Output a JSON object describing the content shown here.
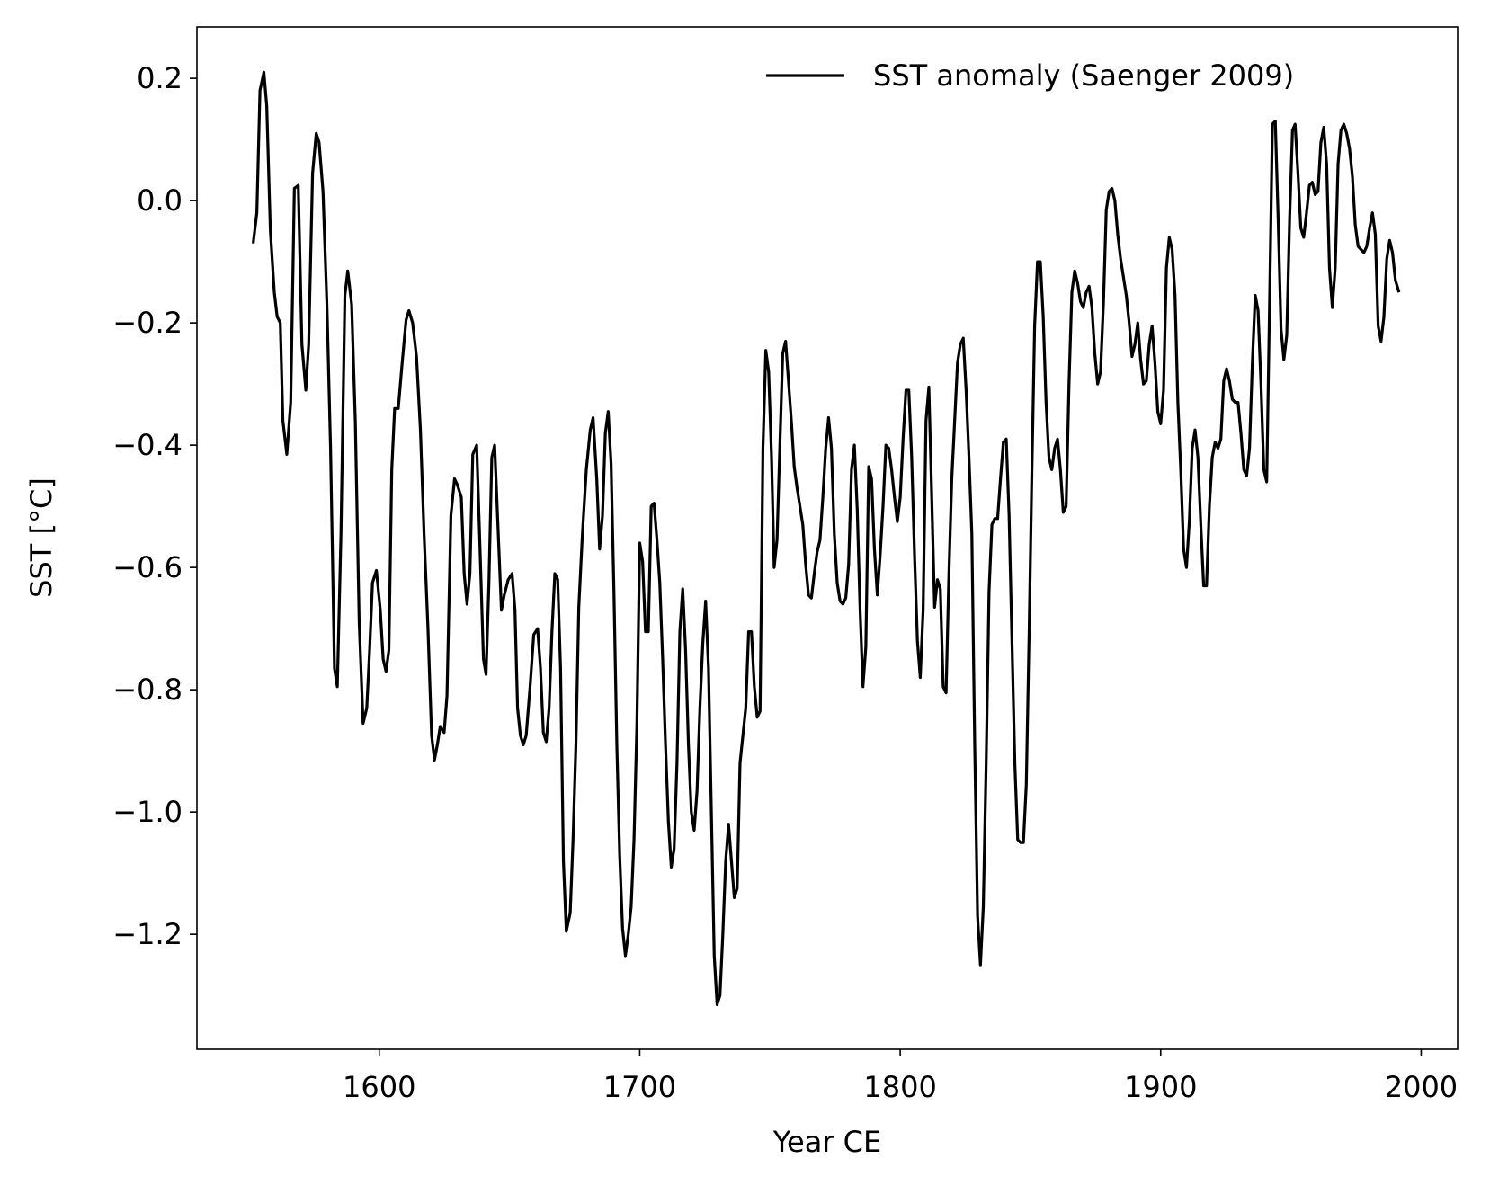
{
  "chart_data": {
    "type": "line",
    "xlabel": "Year CE",
    "ylabel": "SST [°C]",
    "xlim": [
      1530,
      2014
    ],
    "ylim": [
      -1.388,
      0.284
    ],
    "xticks": [
      1600,
      1700,
      1800,
      1900,
      2000
    ],
    "yticks": [
      {
        "value": -1.2,
        "label": "−1.2"
      },
      {
        "value": -1.0,
        "label": "−1.0"
      },
      {
        "value": -0.8,
        "label": "−0.8"
      },
      {
        "value": -0.6,
        "label": "−0.6"
      },
      {
        "value": -0.4,
        "label": "−0.4"
      },
      {
        "value": -0.2,
        "label": "−0.2"
      },
      {
        "value": 0.0,
        "label": "0.0"
      },
      0.2
    ],
    "grid": false,
    "legend": "upper right",
    "x": [
      1551.6,
      1553,
      1554.2,
      1555.7,
      1556.8,
      1558.2,
      1559.7,
      1560.8,
      1562,
      1563,
      1564.5,
      1566,
      1567.4,
      1568.9,
      1570.3,
      1571.8,
      1572.9,
      1574.4,
      1575.8,
      1576.9,
      1578.4,
      1579.9,
      1581.3,
      1582.8,
      1583.9,
      1585.3,
      1586.8,
      1587.9,
      1589.4,
      1590.8,
      1592.3,
      1593.8,
      1595.2,
      1596.3,
      1597.4,
      1598.9,
      1600.4,
      1601.5,
      1602.6,
      1603.7,
      1604.8,
      1605.9,
      1607.3,
      1608.8,
      1610.3,
      1611.4,
      1612.8,
      1614.3,
      1615.8,
      1617.2,
      1618.7,
      1620.1,
      1621.2,
      1622.3,
      1623.4,
      1624.9,
      1626,
      1627.5,
      1628.9,
      1630,
      1631.5,
      1632.6,
      1633.7,
      1634.8,
      1635.9,
      1637.4,
      1638.5,
      1640,
      1641,
      1642.1,
      1643.2,
      1644.3,
      1645.4,
      1646.9,
      1648,
      1649.5,
      1651,
      1652.1,
      1653.1,
      1654.2,
      1655.3,
      1656.4,
      1657.9,
      1659.3,
      1660.8,
      1661.9,
      1663,
      1664.1,
      1665.2,
      1666.3,
      1667.4,
      1668.5,
      1669.6,
      1670.7,
      1671.8,
      1673.3,
      1674.4,
      1675.5,
      1676.6,
      1678,
      1679.5,
      1681,
      1682.1,
      1683.5,
      1684.6,
      1685.7,
      1686.8,
      1687.9,
      1689,
      1690.1,
      1691.2,
      1692.3,
      1693.4,
      1694.5,
      1695.6,
      1696.7,
      1697.8,
      1698.9,
      1700,
      1701.1,
      1702.2,
      1703.3,
      1704.4,
      1705.5,
      1706.6,
      1707.7,
      1708.8,
      1709.9,
      1711,
      1712.1,
      1713.2,
      1714.3,
      1715.4,
      1716.5,
      1717.6,
      1718.7,
      1719.8,
      1720.9,
      1722,
      1723.1,
      1724.2,
      1725.3,
      1726.4,
      1727.5,
      1728.6,
      1729.7,
      1730.8,
      1731.9,
      1733,
      1734.1,
      1735.2,
      1736.3,
      1737.4,
      1738.5,
      1739.6,
      1740.7,
      1741.8,
      1742.9,
      1744,
      1745.1,
      1746.2,
      1747.3,
      1748.4,
      1749.5,
      1750.6,
      1751.6,
      1752.7,
      1753.8,
      1754.9,
      1756,
      1757.1,
      1758.2,
      1759.3,
      1760.4,
      1761.5,
      1762.6,
      1763.7,
      1764.8,
      1765.9,
      1767,
      1768.1,
      1769.2,
      1770.3,
      1771.4,
      1772.5,
      1773.6,
      1774.7,
      1775.8,
      1776.9,
      1778,
      1779.1,
      1780.2,
      1781.3,
      1782.4,
      1783.5,
      1784.6,
      1785.7,
      1786.8,
      1787.9,
      1789,
      1790.1,
      1791.2,
      1792.3,
      1793.4,
      1794.5,
      1795.6,
      1796.7,
      1797.8,
      1798.9,
      1800,
      1801.1,
      1802.2,
      1803.3,
      1804.4,
      1805.5,
      1806.6,
      1807.7,
      1808.8,
      1809.9,
      1811,
      1812.1,
      1813.2,
      1814.3,
      1815.4,
      1816.5,
      1817.6,
      1818.7,
      1819.8,
      1820.9,
      1822,
      1823.1,
      1824.2,
      1825.3,
      1826.4,
      1827.5,
      1828.6,
      1829.7,
      1830.8,
      1831.9,
      1833,
      1834.1,
      1835.2,
      1836.3,
      1837.4,
      1838.5,
      1839.6,
      1840.7,
      1841.8,
      1842.9,
      1844,
      1845.1,
      1846.2,
      1847.3,
      1848.4,
      1849.5,
      1850.5,
      1851.6,
      1852.7,
      1853.8,
      1854.9,
      1856,
      1857.1,
      1858.2,
      1859.3,
      1860.4,
      1861.5,
      1862.6,
      1863.7,
      1864.8,
      1865.9,
      1867,
      1868.1,
      1869.2,
      1870.3,
      1871.4,
      1872.5,
      1873.6,
      1874.7,
      1875.8,
      1876.9,
      1878,
      1879.1,
      1880.2,
      1881.3,
      1882.4,
      1883.5,
      1884.6,
      1885.7,
      1886.8,
      1887.9,
      1889,
      1890.1,
      1891.2,
      1892.3,
      1893.4,
      1894.5,
      1895.6,
      1896.7,
      1897.8,
      1898.9,
      1900,
      1901.1,
      1902.2,
      1903.3,
      1904.4,
      1905.5,
      1906.6,
      1907.7,
      1908.8,
      1909.9,
      1911,
      1912.1,
      1913.2,
      1914.3,
      1915.4,
      1916.5,
      1917.6,
      1918.7,
      1919.8,
      1920.9,
      1922,
      1923.1,
      1924.2,
      1925.3,
      1926.4,
      1927.5,
      1928.6,
      1929.7,
      1930.8,
      1931.9,
      1933,
      1934.1,
      1935.2,
      1936.3,
      1937.4,
      1938.5,
      1939.6,
      1940.7,
      1941.8,
      1942.9,
      1944,
      1945.1,
      1946.2,
      1947.3,
      1948.4,
      1949.5,
      1950.6,
      1951.6,
      1952.7,
      1953.8,
      1954.9,
      1956,
      1957.1,
      1958.2,
      1959.3,
      1960.4,
      1961.5,
      1962.6,
      1963.7,
      1964.8,
      1965.9,
      1967,
      1968.1,
      1969.2,
      1970.3,
      1971.4,
      1972.5,
      1973.6,
      1974.7,
      1975.8,
      1976.9,
      1978,
      1979.1,
      1980.2,
      1981.3,
      1982.4,
      1983.5,
      1984.6,
      1985.7,
      1986.8,
      1987.9,
      1989,
      1990.1,
      1991.5
    ],
    "series": [
      {
        "name": "SST anomaly (Saenger 2009)",
        "color": "#000000",
        "values": [
          -0.07,
          -0.02,
          0.18,
          0.21,
          0.155,
          -0.05,
          -0.15,
          -0.19,
          -0.2,
          -0.36,
          -0.415,
          -0.33,
          0.02,
          0.025,
          -0.235,
          -0.31,
          -0.235,
          0.045,
          0.11,
          0.095,
          0.015,
          -0.17,
          -0.405,
          -0.765,
          -0.795,
          -0.545,
          -0.155,
          -0.115,
          -0.17,
          -0.36,
          -0.69,
          -0.855,
          -0.83,
          -0.735,
          -0.625,
          -0.605,
          -0.67,
          -0.75,
          -0.77,
          -0.735,
          -0.44,
          -0.34,
          -0.34,
          -0.265,
          -0.195,
          -0.18,
          -0.2,
          -0.255,
          -0.375,
          -0.545,
          -0.7,
          -0.875,
          -0.915,
          -0.89,
          -0.86,
          -0.87,
          -0.81,
          -0.515,
          -0.455,
          -0.465,
          -0.485,
          -0.61,
          -0.66,
          -0.61,
          -0.415,
          -0.4,
          -0.545,
          -0.75,
          -0.775,
          -0.625,
          -0.42,
          -0.4,
          -0.515,
          -0.67,
          -0.645,
          -0.62,
          -0.61,
          -0.67,
          -0.83,
          -0.875,
          -0.89,
          -0.875,
          -0.795,
          -0.71,
          -0.7,
          -0.765,
          -0.87,
          -0.885,
          -0.83,
          -0.705,
          -0.61,
          -0.62,
          -0.765,
          -1.08,
          -1.195,
          -1.165,
          -1.045,
          -0.89,
          -0.665,
          -0.545,
          -0.44,
          -0.375,
          -0.355,
          -0.455,
          -0.57,
          -0.515,
          -0.38,
          -0.345,
          -0.43,
          -0.64,
          -0.89,
          -1.07,
          -1.19,
          -1.235,
          -1.2,
          -1.155,
          -1.045,
          -0.86,
          -0.56,
          -0.59,
          -0.705,
          -0.705,
          -0.5,
          -0.495,
          -0.555,
          -0.625,
          -0.75,
          -0.89,
          -1.015,
          -1.09,
          -1.06,
          -0.92,
          -0.705,
          -0.635,
          -0.735,
          -0.89,
          -1.0,
          -1.03,
          -0.965,
          -0.83,
          -0.725,
          -0.655,
          -0.765,
          -1.0,
          -1.235,
          -1.315,
          -1.3,
          -1.2,
          -1.08,
          -1.02,
          -1.08,
          -1.14,
          -1.125,
          -0.92,
          -0.875,
          -0.83,
          -0.705,
          -0.705,
          -0.795,
          -0.845,
          -0.835,
          -0.405,
          -0.245,
          -0.28,
          -0.42,
          -0.6,
          -0.555,
          -0.4,
          -0.25,
          -0.23,
          -0.295,
          -0.36,
          -0.435,
          -0.47,
          -0.5,
          -0.53,
          -0.595,
          -0.645,
          -0.65,
          -0.61,
          -0.575,
          -0.555,
          -0.485,
          -0.405,
          -0.355,
          -0.405,
          -0.545,
          -0.625,
          -0.655,
          -0.66,
          -0.65,
          -0.595,
          -0.44,
          -0.4,
          -0.505,
          -0.67,
          -0.795,
          -0.73,
          -0.435,
          -0.455,
          -0.57,
          -0.645,
          -0.58,
          -0.5,
          -0.4,
          -0.405,
          -0.44,
          -0.485,
          -0.525,
          -0.485,
          -0.39,
          -0.31,
          -0.31,
          -0.42,
          -0.58,
          -0.72,
          -0.78,
          -0.67,
          -0.36,
          -0.305,
          -0.485,
          -0.665,
          -0.62,
          -0.635,
          -0.795,
          -0.805,
          -0.61,
          -0.455,
          -0.36,
          -0.265,
          -0.235,
          -0.225,
          -0.31,
          -0.42,
          -0.545,
          -0.89,
          -1.17,
          -1.25,
          -1.155,
          -0.92,
          -0.64,
          -0.53,
          -0.52,
          -0.52,
          -0.455,
          -0.395,
          -0.39,
          -0.515,
          -0.72,
          -0.92,
          -1.045,
          -1.05,
          -1.05,
          -0.955,
          -0.705,
          -0.455,
          -0.205,
          -0.1,
          -0.1,
          -0.19,
          -0.33,
          -0.42,
          -0.44,
          -0.405,
          -0.39,
          -0.44,
          -0.51,
          -0.5,
          -0.3,
          -0.15,
          -0.115,
          -0.135,
          -0.165,
          -0.175,
          -0.15,
          -0.14,
          -0.175,
          -0.25,
          -0.3,
          -0.28,
          -0.17,
          -0.015,
          0.015,
          0.02,
          0.0,
          -0.055,
          -0.095,
          -0.125,
          -0.155,
          -0.2,
          -0.255,
          -0.235,
          -0.2,
          -0.26,
          -0.3,
          -0.295,
          -0.235,
          -0.205,
          -0.265,
          -0.345,
          -0.365,
          -0.31,
          -0.11,
          -0.06,
          -0.08,
          -0.155,
          -0.33,
          -0.44,
          -0.57,
          -0.6,
          -0.525,
          -0.405,
          -0.375,
          -0.42,
          -0.53,
          -0.63,
          -0.63,
          -0.5,
          -0.42,
          -0.395,
          -0.405,
          -0.39,
          -0.295,
          -0.275,
          -0.295,
          -0.325,
          -0.33,
          -0.33,
          -0.38,
          -0.44,
          -0.45,
          -0.405,
          -0.265,
          -0.155,
          -0.18,
          -0.3,
          -0.44,
          -0.46,
          -0.17,
          0.125,
          0.13,
          -0.03,
          -0.21,
          -0.26,
          -0.22,
          -0.03,
          0.115,
          0.125,
          0.045,
          -0.045,
          -0.06,
          -0.02,
          0.025,
          0.03,
          0.01,
          0.015,
          0.095,
          0.12,
          0.06,
          -0.11,
          -0.175,
          -0.11,
          0.06,
          0.115,
          0.125,
          0.11,
          0.085,
          0.04,
          -0.04,
          -0.075,
          -0.08,
          -0.085,
          -0.075,
          -0.045,
          -0.02,
          -0.055,
          -0.205,
          -0.23,
          -0.19,
          -0.095,
          -0.065,
          -0.085,
          -0.13,
          -0.15
        ]
      }
    ]
  }
}
